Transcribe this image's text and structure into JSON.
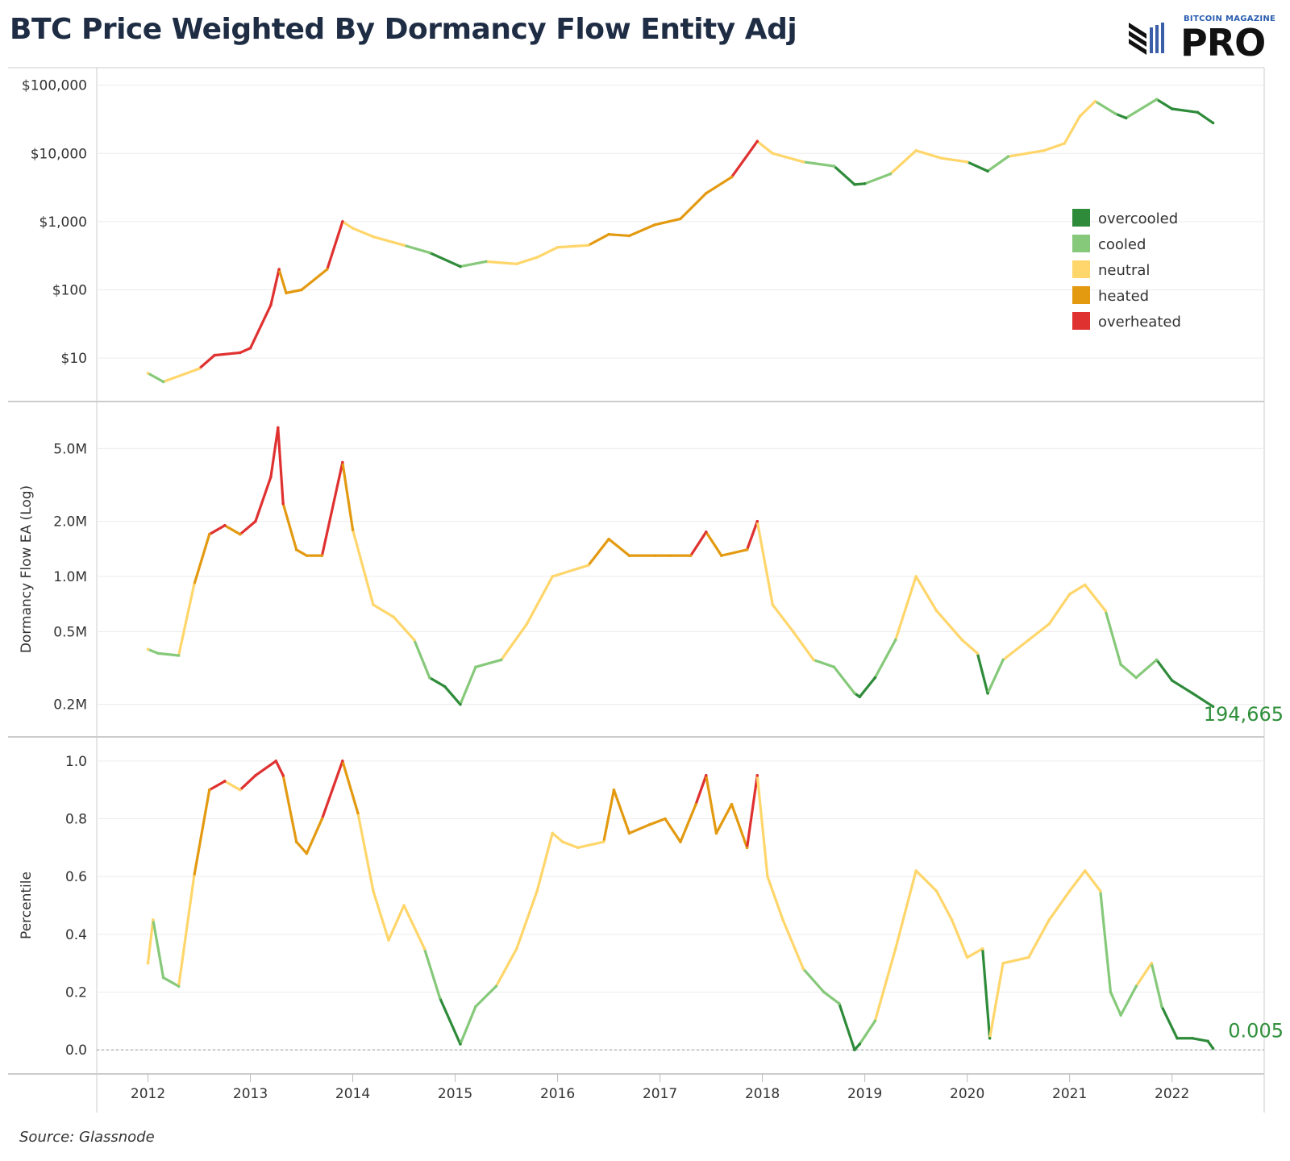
{
  "title": "BTC Price Weighted By Dormancy Flow Entity Adj",
  "logo": {
    "top_text": "BITCOIN MAGAZINE",
    "main_text": "PRO"
  },
  "source": "Source: Glassnode",
  "colors": {
    "overcooled": "#2e8b3a",
    "cooled": "#86c97a",
    "neutral": "#ffd66b",
    "heated": "#e39a11",
    "overheated": "#e03131",
    "grid": "#ececec",
    "axis": "#cccccc",
    "end_label": "#2f8f3a"
  },
  "chart_data": [
    {
      "type": "line",
      "name": "price",
      "ylabel": "",
      "yscale": "log",
      "ylim": [
        3.2,
        130000
      ],
      "yticks": [
        10,
        100,
        1000,
        10000,
        100000
      ],
      "ytick_labels": [
        "$10",
        "$100",
        "$1,000",
        "$10,000",
        "$100,000"
      ],
      "legend": {
        "position": "right",
        "entries": [
          "overcooled",
          "cooled",
          "neutral",
          "heated",
          "overheated"
        ]
      },
      "x": [
        2012.0,
        2012.15,
        2012.5,
        2012.65,
        2012.9,
        2013.0,
        2013.2,
        2013.28,
        2013.35,
        2013.5,
        2013.75,
        2013.9,
        2014.0,
        2014.2,
        2014.5,
        2014.75,
        2015.05,
        2015.3,
        2015.6,
        2015.8,
        2016.0,
        2016.3,
        2016.5,
        2016.7,
        2016.95,
        2017.2,
        2017.45,
        2017.7,
        2017.95,
        2018.1,
        2018.4,
        2018.7,
        2018.9,
        2019.0,
        2019.25,
        2019.5,
        2019.75,
        2020.0,
        2020.2,
        2020.4,
        2020.75,
        2020.95,
        2021.1,
        2021.25,
        2021.45,
        2021.55,
        2021.85,
        2022.0,
        2022.25,
        2022.4
      ],
      "y": [
        6,
        4.5,
        7,
        11,
        12,
        14,
        60,
        200,
        90,
        100,
        200,
        1000,
        800,
        600,
        450,
        350,
        220,
        260,
        240,
        300,
        420,
        450,
        650,
        620,
        900,
        1100,
        2600,
        4500,
        15000,
        10000,
        7500,
        6500,
        3500,
        3600,
        5000,
        11000,
        8500,
        7500,
        5500,
        9000,
        11000,
        14000,
        35000,
        58000,
        38000,
        33000,
        62000,
        45000,
        40000,
        28000
      ],
      "regime": [
        "neutral",
        "cooled",
        "neutral",
        "overheated",
        "overheated",
        "overheated",
        "overheated",
        "overheated",
        "heated",
        "heated",
        "heated",
        "overheated",
        "neutral",
        "neutral",
        "neutral",
        "cooled",
        "overcooled",
        "cooled",
        "neutral",
        "neutral",
        "neutral",
        "neutral",
        "heated",
        "heated",
        "heated",
        "heated",
        "heated",
        "heated",
        "overheated",
        "neutral",
        "neutral",
        "cooled",
        "overcooled",
        "overcooled",
        "cooled",
        "neutral",
        "neutral",
        "neutral",
        "overcooled",
        "cooled",
        "neutral",
        "neutral",
        "neutral",
        "neutral",
        "cooled",
        "overcooled",
        "cooled",
        "overcooled",
        "overcooled",
        "overcooled"
      ]
    },
    {
      "type": "line",
      "name": "dormancy",
      "ylabel": "Dormancy Flow EA (Log)",
      "yscale": "log",
      "ylim": [
        150000,
        8000000
      ],
      "yticks": [
        200000,
        500000,
        1000000,
        2000000,
        5000000
      ],
      "ytick_labels": [
        "0.2M",
        "0.5M",
        "1.0M",
        "2.0M",
        "5.0M"
      ],
      "end_label": "194,665",
      "x": [
        2012.0,
        2012.1,
        2012.3,
        2012.45,
        2012.6,
        2012.75,
        2012.9,
        2013.05,
        2013.2,
        2013.27,
        2013.32,
        2013.45,
        2013.55,
        2013.7,
        2013.9,
        2014.0,
        2014.2,
        2014.4,
        2014.6,
        2014.75,
        2014.9,
        2015.05,
        2015.2,
        2015.45,
        2015.7,
        2015.95,
        2016.3,
        2016.5,
        2016.7,
        2016.95,
        2017.1,
        2017.3,
        2017.45,
        2017.6,
        2017.85,
        2017.95,
        2018.1,
        2018.3,
        2018.5,
        2018.7,
        2018.9,
        2018.95,
        2019.1,
        2019.3,
        2019.5,
        2019.7,
        2019.95,
        2020.1,
        2020.2,
        2020.35,
        2020.6,
        2020.8,
        2021.0,
        2021.15,
        2021.35,
        2021.5,
        2021.65,
        2021.85,
        2022.0,
        2022.2,
        2022.4
      ],
      "y": [
        400000,
        380000,
        370000,
        900000,
        1700000,
        1900000,
        1700000,
        2000000,
        3500000,
        6500000,
        2500000,
        1400000,
        1300000,
        1300000,
        4200000,
        1800000,
        700000,
        600000,
        450000,
        280000,
        250000,
        200000,
        320000,
        350000,
        550000,
        1000000,
        1150000,
        1600000,
        1300000,
        1300000,
        1300000,
        1300000,
        1750000,
        1300000,
        1400000,
        2000000,
        700000,
        500000,
        350000,
        320000,
        230000,
        220000,
        280000,
        450000,
        1000000,
        650000,
        450000,
        380000,
        230000,
        350000,
        450000,
        550000,
        800000,
        900000,
        650000,
        330000,
        280000,
        350000,
        270000,
        230000,
        194665
      ],
      "regime": [
        "neutral",
        "cooled",
        "cooled",
        "neutral",
        "heated",
        "overheated",
        "heated",
        "overheated",
        "overheated",
        "overheated",
        "overheated",
        "heated",
        "heated",
        "heated",
        "overheated",
        "heated",
        "neutral",
        "neutral",
        "neutral",
        "cooled",
        "overcooled",
        "overcooled",
        "cooled",
        "cooled",
        "neutral",
        "neutral",
        "neutral",
        "heated",
        "heated",
        "heated",
        "heated",
        "heated",
        "overheated",
        "heated",
        "heated",
        "overheated",
        "neutral",
        "neutral",
        "neutral",
        "cooled",
        "cooled",
        "overcooled",
        "overcooled",
        "cooled",
        "neutral",
        "neutral",
        "neutral",
        "neutral",
        "overcooled",
        "cooled",
        "neutral",
        "neutral",
        "neutral",
        "neutral",
        "neutral",
        "cooled",
        "cooled",
        "cooled",
        "overcooled",
        "overcooled",
        "overcooled"
      ]
    },
    {
      "type": "line",
      "name": "percentile",
      "ylabel": "Percentile",
      "yscale": "linear",
      "ylim": [
        -0.05,
        1.05
      ],
      "yticks": [
        0.0,
        0.2,
        0.4,
        0.6,
        0.8,
        1.0
      ],
      "ytick_labels": [
        "0.0",
        "0.2",
        "0.4",
        "0.6",
        "0.8",
        "1.0"
      ],
      "end_label": "0.005",
      "x": [
        2012.0,
        2012.05,
        2012.15,
        2012.3,
        2012.45,
        2012.6,
        2012.75,
        2012.9,
        2013.05,
        2013.25,
        2013.32,
        2013.45,
        2013.55,
        2013.7,
        2013.9,
        2014.05,
        2014.2,
        2014.35,
        2014.5,
        2014.7,
        2014.85,
        2015.05,
        2015.2,
        2015.4,
        2015.6,
        2015.8,
        2015.95,
        2016.05,
        2016.2,
        2016.45,
        2016.55,
        2016.7,
        2016.9,
        2017.05,
        2017.2,
        2017.35,
        2017.45,
        2017.55,
        2017.7,
        2017.85,
        2017.95,
        2018.05,
        2018.2,
        2018.4,
        2018.6,
        2018.75,
        2018.9,
        2018.95,
        2019.1,
        2019.3,
        2019.5,
        2019.7,
        2019.85,
        2020.0,
        2020.15,
        2020.22,
        2020.35,
        2020.6,
        2020.8,
        2021.0,
        2021.15,
        2021.3,
        2021.4,
        2021.5,
        2021.65,
        2021.8,
        2021.9,
        2022.05,
        2022.2,
        2022.35,
        2022.4
      ],
      "y": [
        0.3,
        0.45,
        0.25,
        0.22,
        0.6,
        0.9,
        0.93,
        0.9,
        0.95,
        1.0,
        0.95,
        0.72,
        0.68,
        0.8,
        1.0,
        0.82,
        0.55,
        0.38,
        0.5,
        0.35,
        0.18,
        0.02,
        0.15,
        0.22,
        0.35,
        0.55,
        0.75,
        0.72,
        0.7,
        0.72,
        0.9,
        0.75,
        0.78,
        0.8,
        0.72,
        0.85,
        0.95,
        0.75,
        0.85,
        0.7,
        0.95,
        0.6,
        0.45,
        0.28,
        0.2,
        0.16,
        0.0,
        0.02,
        0.1,
        0.35,
        0.62,
        0.55,
        0.45,
        0.32,
        0.35,
        0.04,
        0.3,
        0.32,
        0.45,
        0.55,
        0.62,
        0.55,
        0.2,
        0.12,
        0.22,
        0.3,
        0.15,
        0.04,
        0.04,
        0.03,
        0.005
      ],
      "regime": [
        "neutral",
        "neutral",
        "cooled",
        "cooled",
        "neutral",
        "heated",
        "overheated",
        "neutral",
        "overheated",
        "overheated",
        "overheated",
        "heated",
        "heated",
        "heated",
        "overheated",
        "heated",
        "neutral",
        "neutral",
        "neutral",
        "neutral",
        "cooled",
        "overcooled",
        "cooled",
        "cooled",
        "neutral",
        "neutral",
        "neutral",
        "neutral",
        "neutral",
        "neutral",
        "heated",
        "heated",
        "heated",
        "heated",
        "heated",
        "heated",
        "overheated",
        "heated",
        "heated",
        "heated",
        "overheated",
        "neutral",
        "neutral",
        "neutral",
        "cooled",
        "cooled",
        "overcooled",
        "overcooled",
        "cooled",
        "neutral",
        "neutral",
        "neutral",
        "neutral",
        "neutral",
        "neutral",
        "overcooled",
        "neutral",
        "neutral",
        "neutral",
        "neutral",
        "neutral",
        "neutral",
        "cooled",
        "cooled",
        "cooled",
        "neutral",
        "cooled",
        "overcooled",
        "overcooled",
        "overcooled",
        "overcooled"
      ]
    }
  ],
  "xaxis": {
    "xlim": [
      2011.5,
      2022.9
    ],
    "ticks": [
      2012,
      2013,
      2014,
      2015,
      2016,
      2017,
      2018,
      2019,
      2020,
      2021,
      2022
    ],
    "tick_labels": [
      "2012",
      "2013",
      "2014",
      "2015",
      "2016",
      "2017",
      "2018",
      "2019",
      "2020",
      "2021",
      "2022"
    ]
  }
}
